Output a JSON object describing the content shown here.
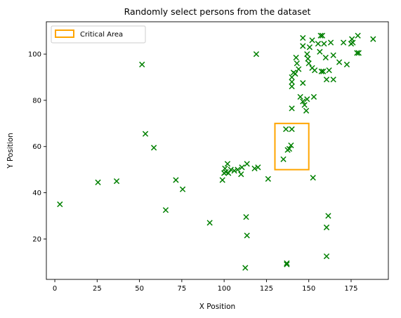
{
  "chart_data": {
    "type": "scatter",
    "title": "Randomly select persons from the dataset",
    "xlabel": "X Position",
    "ylabel": "Y Position",
    "xlim": [
      -5,
      197
    ],
    "ylim": [
      2.5,
      114
    ],
    "xticks": [
      0,
      25,
      50,
      75,
      100,
      125,
      150,
      175
    ],
    "yticks": [
      20,
      40,
      60,
      80,
      100
    ],
    "grid": false,
    "legend": {
      "placement": "top-left",
      "entries": [
        "Critical Area"
      ]
    },
    "marker": "x",
    "marker_color": "#008000",
    "area_color": "#FFA500",
    "critical_area": {
      "x": [
        130,
        150
      ],
      "y": [
        50,
        70
      ],
      "label": "Critical Area"
    },
    "points": [
      [
        3,
        35
      ],
      [
        25.5,
        44.5
      ],
      [
        36.5,
        45
      ],
      [
        51.5,
        95.5
      ],
      [
        53.5,
        65.5
      ],
      [
        58.5,
        59.5
      ],
      [
        65.5,
        32.5
      ],
      [
        71.5,
        45.5
      ],
      [
        75.5,
        41.5
      ],
      [
        91.5,
        27
      ],
      [
        99,
        45.5
      ],
      [
        100,
        48.5
      ],
      [
        100.5,
        50.5
      ],
      [
        101,
        49
      ],
      [
        102,
        52.5
      ],
      [
        102.5,
        48.5
      ],
      [
        104,
        50
      ],
      [
        106,
        49.5
      ],
      [
        108,
        50
      ],
      [
        110,
        48
      ],
      [
        110.5,
        51
      ],
      [
        113,
        29.5
      ],
      [
        113.5,
        52.5
      ],
      [
        113.5,
        21.5
      ],
      [
        112.5,
        7.5
      ],
      [
        118,
        50.5
      ],
      [
        119,
        100
      ],
      [
        120,
        51
      ],
      [
        126,
        46
      ],
      [
        135,
        54.5
      ],
      [
        136.5,
        67.5
      ],
      [
        137.5,
        58.5
      ],
      [
        138.5,
        59
      ],
      [
        139.5,
        60.5
      ],
      [
        140,
        67.5
      ],
      [
        137,
        9.5
      ],
      [
        137,
        9
      ],
      [
        152.5,
        46.5
      ],
      [
        160.5,
        25
      ],
      [
        160.5,
        12.5
      ],
      [
        161.5,
        30
      ],
      [
        140,
        76.5
      ],
      [
        140,
        86
      ],
      [
        140,
        88
      ],
      [
        140,
        90
      ],
      [
        141,
        92
      ],
      [
        142,
        91.5
      ],
      [
        142.5,
        98.5
      ],
      [
        143,
        96
      ],
      [
        144,
        93.5
      ],
      [
        145,
        81.5
      ],
      [
        146.5,
        87.5
      ],
      [
        146.5,
        79.5
      ],
      [
        146.5,
        103.5
      ],
      [
        146.5,
        107
      ],
      [
        147.5,
        78
      ],
      [
        148.5,
        75.5
      ],
      [
        149,
        80.5
      ],
      [
        149,
        100
      ],
      [
        149.5,
        98
      ],
      [
        150,
        96
      ],
      [
        150.5,
        103
      ],
      [
        152,
        106
      ],
      [
        152,
        94
      ],
      [
        153,
        81.5
      ],
      [
        153.5,
        93
      ],
      [
        155.5,
        104.5
      ],
      [
        156.5,
        101
      ],
      [
        157,
        108
      ],
      [
        157.5,
        92.5
      ],
      [
        158,
        108
      ],
      [
        158.5,
        92.5
      ],
      [
        159,
        104.5
      ],
      [
        160,
        98.5
      ],
      [
        160.5,
        89
      ],
      [
        162,
        93
      ],
      [
        163,
        105
      ],
      [
        164.5,
        89
      ],
      [
        164.5,
        99.5
      ],
      [
        168,
        96.5
      ],
      [
        170.5,
        105
      ],
      [
        172.5,
        95.5
      ],
      [
        175,
        104.5
      ],
      [
        175.5,
        106.5
      ],
      [
        176,
        105
      ],
      [
        178.5,
        100.5
      ],
      [
        179,
        108
      ],
      [
        179.5,
        100.5
      ],
      [
        188,
        106.5
      ]
    ]
  }
}
